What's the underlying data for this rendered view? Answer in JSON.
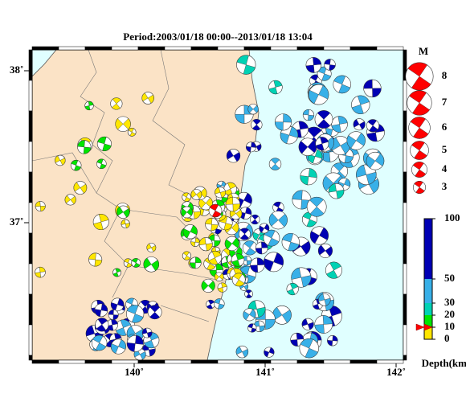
{
  "title": "Period:2003/01/18 00:00--2013/01/18 13:04",
  "lat_ticks": [
    {
      "value": 38,
      "label": "38˚"
    },
    {
      "value": 37,
      "label": "37˚"
    }
  ],
  "lon_ticks": [
    {
      "value": 140,
      "label": "140˚"
    },
    {
      "value": 141,
      "label": "141˚"
    },
    {
      "value": 142,
      "label": "142˚"
    }
  ],
  "magnitude_legend": {
    "title": "M",
    "values": [
      8,
      7,
      6,
      5,
      4,
      3
    ]
  },
  "depth_scale": {
    "label": "Depth(km)",
    "lim": [
      0,
      100
    ],
    "ticks": [
      100,
      50,
      30,
      20,
      10,
      0
    ]
  }
}
